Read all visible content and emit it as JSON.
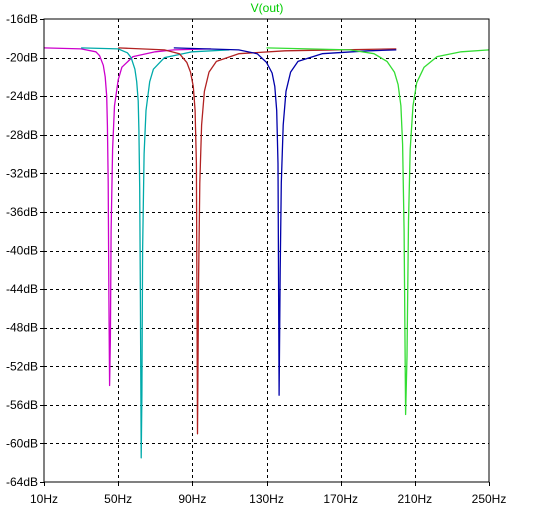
{
  "chart_data": {
    "type": "line",
    "title": "V(out)",
    "xlabel": "",
    "ylabel": "",
    "x_scale": "linear",
    "x_unit": "Hz",
    "y_unit": "dB",
    "xlim": [
      10,
      250
    ],
    "ylim": [
      -64,
      -16
    ],
    "x_ticks": [
      10,
      50,
      90,
      130,
      170,
      210,
      250
    ],
    "x_tick_labels": [
      "10Hz",
      "50Hz",
      "90Hz",
      "130Hz",
      "170Hz",
      "210Hz",
      "250Hz"
    ],
    "y_ticks": [
      -16,
      -20,
      -24,
      -28,
      -32,
      -36,
      -40,
      -44,
      -48,
      -52,
      -56,
      -60,
      -64
    ],
    "y_tick_labels": [
      "-16dB",
      "-20dB",
      "-24dB",
      "-28dB",
      "-32dB",
      "-36dB",
      "-40dB",
      "-44dB",
      "-48dB",
      "-52dB",
      "-56dB",
      "-60dB",
      "-64dB"
    ],
    "grid": true,
    "legend": "none",
    "series": [
      {
        "color": "#cc00cc",
        "x": [
          10,
          30,
          38,
          40,
          42,
          43,
          43.8,
          44.2,
          44.6,
          45,
          45.4,
          45.8,
          46.2,
          47,
          48,
          50,
          52,
          58,
          70,
          80,
          100
        ],
        "values": [
          -19.0,
          -19.1,
          -19.4,
          -19.8,
          -20.8,
          -22.0,
          -24.0,
          -27.0,
          -33.0,
          -45.0,
          -54.0,
          -49.0,
          -38.0,
          -29.5,
          -25.0,
          -22.3,
          -21.0,
          -19.9,
          -19.4,
          -19.2,
          -19.1
        ]
      },
      {
        "color": "#00aaaa",
        "x": [
          30,
          50,
          55,
          57,
          59,
          60,
          60.8,
          61.2,
          61.6,
          62,
          62.4,
          62.8,
          63.2,
          64,
          65,
          67,
          69,
          75,
          90,
          110
        ],
        "values": [
          -19.0,
          -19.1,
          -19.5,
          -20.0,
          -21.2,
          -22.5,
          -24.5,
          -27.5,
          -33.5,
          -45.0,
          -61.5,
          -55.0,
          -40.0,
          -30.0,
          -25.5,
          -22.5,
          -21.2,
          -20.0,
          -19.4,
          -19.2
        ]
      },
      {
        "color": "#b22222",
        "x": [
          50,
          75,
          83,
          87,
          89,
          90.5,
          91.5,
          92.2,
          92.8,
          93.4,
          94,
          95,
          96.5,
          99,
          103,
          115,
          140,
          200
        ],
        "values": [
          -19.0,
          -19.2,
          -19.6,
          -20.5,
          -21.5,
          -23.0,
          -25.5,
          -31.0,
          -59.0,
          -43.0,
          -33.0,
          -27.0,
          -23.5,
          -21.5,
          -20.4,
          -19.6,
          -19.3,
          -19.1
        ]
      },
      {
        "color": "#0000aa",
        "x": [
          80,
          115,
          125,
          130,
          133,
          134.5,
          135.5,
          136.2,
          136.8,
          137.4,
          138,
          139,
          140.5,
          143,
          147,
          160,
          185,
          200
        ],
        "values": [
          -19.0,
          -19.2,
          -19.6,
          -20.5,
          -21.6,
          -23.0,
          -25.5,
          -31.0,
          -55.0,
          -42.0,
          -33.0,
          -27.0,
          -23.5,
          -21.5,
          -20.4,
          -19.6,
          -19.3,
          -19.2
        ]
      },
      {
        "color": "#33dd33",
        "x": [
          130,
          175,
          188,
          195,
          199,
          201,
          202.5,
          203.4,
          204.2,
          205,
          205.8,
          206.6,
          207.5,
          209,
          211,
          215,
          222,
          235,
          250
        ],
        "values": [
          -19.0,
          -19.2,
          -19.6,
          -20.4,
          -21.5,
          -22.8,
          -25.0,
          -29.0,
          -38.0,
          -57.0,
          -51.0,
          -37.0,
          -29.5,
          -25.0,
          -22.6,
          -21.0,
          -19.9,
          -19.4,
          -19.2
        ]
      }
    ]
  }
}
